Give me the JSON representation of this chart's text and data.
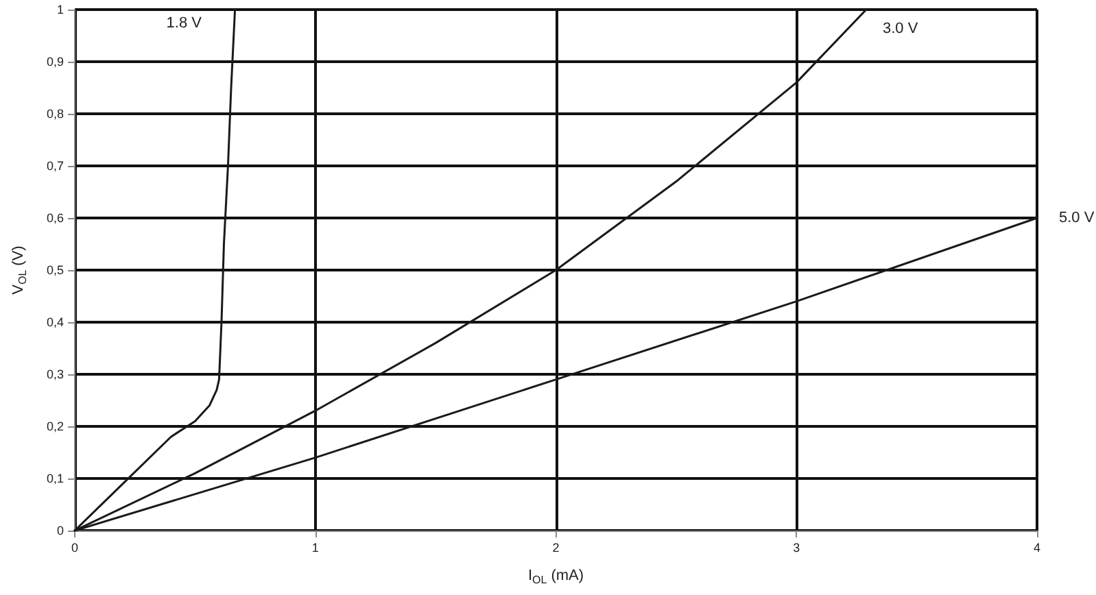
{
  "chart_data": {
    "type": "line",
    "xlabel": "I$_{OL}$ (mA)",
    "ylabel": "V$_{OL}$ (V)",
    "xlim": [
      0,
      4
    ],
    "xticks": [
      0,
      1,
      2,
      3,
      4
    ],
    "ylim": [
      0,
      1
    ],
    "yticks": [
      0,
      {
        "value": 0.1,
        "label": "0,1"
      },
      {
        "value": 0.2,
        "label": "0,2"
      },
      {
        "value": 0.3,
        "label": "0,3"
      },
      {
        "value": 0.4,
        "label": "0,4"
      },
      {
        "value": 0.5,
        "label": "0,5"
      },
      {
        "value": 0.6,
        "label": "0,6"
      },
      {
        "value": 0.7,
        "label": "0,7"
      },
      {
        "value": 0.8,
        "label": "0,8"
      },
      {
        "value": 0.9,
        "label": "0,9"
      },
      1
    ],
    "grid": true,
    "legend": false,
    "marker": "none",
    "line_style": "solid",
    "series": [
      {
        "name": "1.8 V",
        "color": "#1a1a1a",
        "x": [
          0,
          0.2,
          0.4,
          0.5,
          0.56,
          0.59,
          0.6,
          0.61,
          0.62,
          0.637,
          0.65,
          0.666
        ],
        "values": [
          0,
          0.09,
          0.18,
          0.21,
          0.24,
          0.27,
          0.29,
          0.4,
          0.55,
          0.7,
          0.85,
          1
        ]
      },
      {
        "name": "3.0 V",
        "color": "#1a1a1a",
        "x": [
          0,
          0.5,
          1,
          1.5,
          2,
          2.5,
          3,
          3.29
        ],
        "values": [
          0,
          0.11,
          0.23,
          0.36,
          0.5,
          0.67,
          0.86,
          1
        ]
      },
      {
        "name": "5.0 V",
        "color": "#1a1a1a",
        "x": [
          0,
          1,
          2,
          3,
          4
        ],
        "values": [
          0,
          0.14,
          0.29,
          0.44,
          0.6
        ]
      }
    ]
  }
}
